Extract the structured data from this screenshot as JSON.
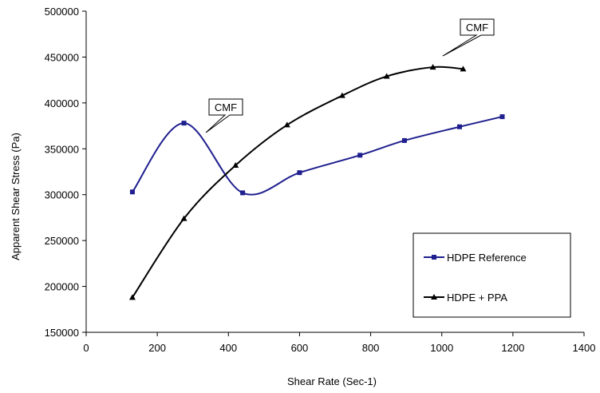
{
  "chart_data": {
    "type": "line",
    "xlabel": "Shear Rate (Sec-1)",
    "ylabel": "Apparent Shear Stress (Pa)",
    "xlim": [
      0,
      1400
    ],
    "ylim": [
      150000,
      500000
    ],
    "xticks": [
      0,
      200,
      400,
      600,
      800,
      1000,
      1200,
      1400
    ],
    "xtick_labels": [
      "0",
      "200",
      "400",
      "600",
      "800",
      "1000",
      "1200",
      "1400"
    ],
    "yticks": [
      150000,
      200000,
      250000,
      300000,
      350000,
      400000,
      450000,
      500000
    ],
    "ytick_labels": [
      "150000",
      "200000",
      "250000",
      "300000",
      "350000",
      "400000",
      "450000",
      "500000"
    ],
    "grid": false,
    "legend_position": "bottom-right",
    "series": [
      {
        "name": "HDPE Reference",
        "color": "#1f1f8f",
        "marker": "square",
        "smooth": true,
        "x": [
          130,
          275,
          440,
          600,
          770,
          895,
          1050,
          1170
        ],
        "y": [
          303000,
          378000,
          302000,
          324000,
          343000,
          359000,
          374000,
          385000
        ]
      },
      {
        "name": "HDPE + PPA",
        "color": "#000000",
        "marker": "triangle",
        "smooth": true,
        "x": [
          130,
          275,
          420,
          565,
          720,
          845,
          975,
          1060
        ],
        "y": [
          188000,
          274000,
          332000,
          376000,
          408000,
          429000,
          439000,
          437000
        ]
      }
    ],
    "annotations": [
      {
        "text": "CMF",
        "x": 275,
        "y": 378000
      },
      {
        "text": "CMF",
        "x": 975,
        "y": 439000
      }
    ]
  }
}
